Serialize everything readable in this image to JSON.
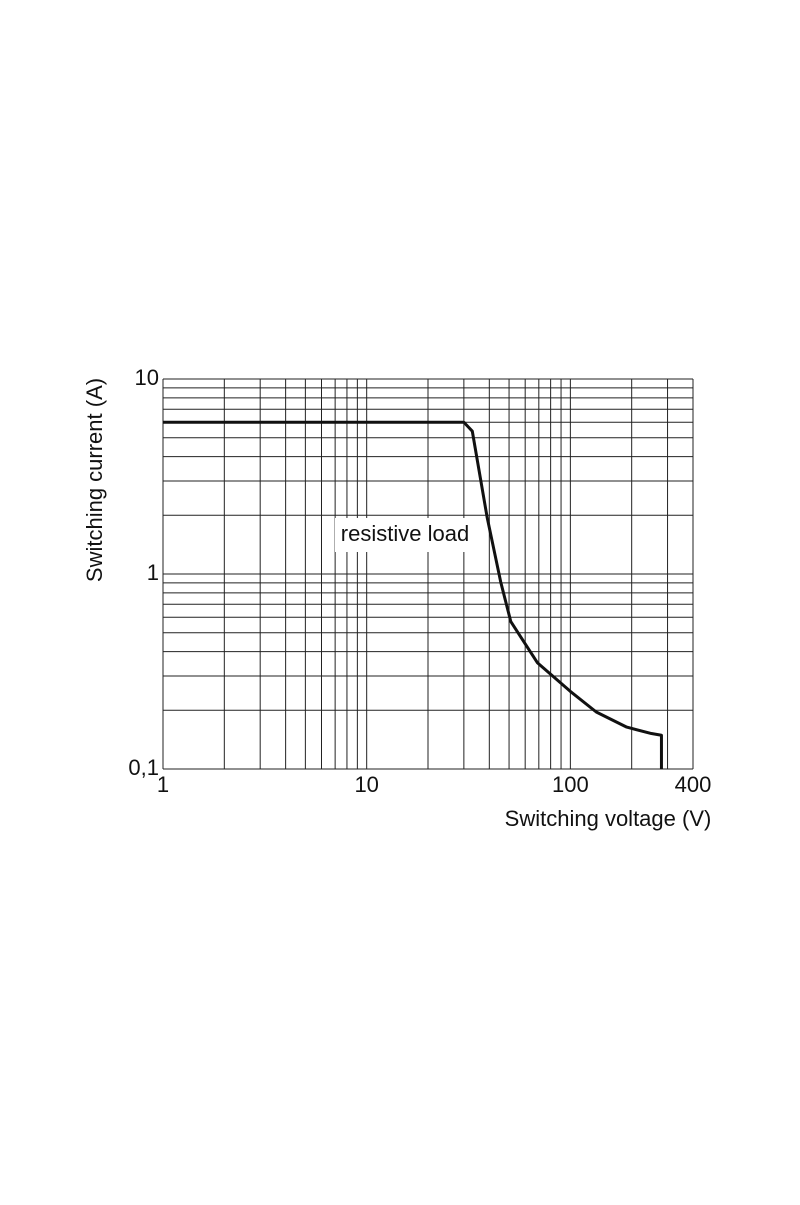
{
  "chart_data": {
    "type": "line",
    "x_label": "Switching voltage (V)",
    "y_label": "Switching current (A)",
    "annotation": "resistive load",
    "x": [
      1,
      30,
      33,
      39,
      45.5,
      51,
      69,
      100,
      134,
      189,
      250,
      280,
      280
    ],
    "series": [
      {
        "color": "#111111",
        "values": [
          6,
          6,
          5.4,
          1.96,
          0.91,
          0.57,
          0.35,
          0.25,
          0.196,
          0.164,
          0.152,
          0.149,
          0.1
        ]
      }
    ],
    "xlog": true,
    "ylog": true,
    "xlim": [
      1,
      400
    ],
    "ylim": [
      0.1,
      10
    ],
    "xticks": [
      1,
      10,
      100,
      400
    ],
    "yticks": [
      10,
      1,
      {
        "value": 0.1,
        "label": "0,1"
      }
    ],
    "grid": true,
    "xgrid": [
      1,
      2,
      3,
      4,
      5,
      6,
      7,
      8,
      9,
      10,
      20,
      30,
      40,
      50,
      60,
      70,
      80,
      90,
      100,
      200,
      300,
      400
    ],
    "ygrid": [
      0.1,
      0.2,
      0.3,
      0.4,
      0.5,
      0.6,
      0.7,
      0.8,
      0.9,
      1,
      2,
      3,
      4,
      5,
      6,
      7,
      8,
      9,
      10
    ]
  }
}
